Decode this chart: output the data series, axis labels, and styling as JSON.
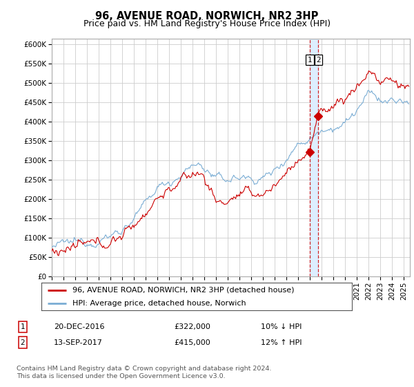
{
  "title": "96, AVENUE ROAD, NORWICH, NR2 3HP",
  "subtitle": "Price paid vs. HM Land Registry's House Price Index (HPI)",
  "ylabel_ticks": [
    0,
    50000,
    100000,
    150000,
    200000,
    250000,
    300000,
    350000,
    400000,
    450000,
    500000,
    550000,
    600000
  ],
  "ylabel_labels": [
    "£0",
    "£50K",
    "£100K",
    "£150K",
    "£200K",
    "£250K",
    "£300K",
    "£350K",
    "£400K",
    "£450K",
    "£500K",
    "£550K",
    "£600K"
  ],
  "ylim": [
    0,
    615000
  ],
  "xlim_start": 1995.0,
  "xlim_end": 2025.5,
  "sale1_date": 2016.96,
  "sale1_price": 322000,
  "sale2_date": 2017.71,
  "sale2_price": 415000,
  "red_line_color": "#cc0000",
  "blue_line_color": "#7aadd4",
  "sale_band_color": "#ddeeff",
  "grid_color": "#cccccc",
  "background_color": "#ffffff",
  "legend_line1": "96, AVENUE ROAD, NORWICH, NR2 3HP (detached house)",
  "legend_line2": "HPI: Average price, detached house, Norwich",
  "annotation1_date": "20-DEC-2016",
  "annotation1_price": "£322,000",
  "annotation1_hpi": "10% ↓ HPI",
  "annotation2_date": "13-SEP-2017",
  "annotation2_price": "£415,000",
  "annotation2_hpi": "12% ↑ HPI",
  "footer": "Contains HM Land Registry data © Crown copyright and database right 2024.\nThis data is licensed under the Open Government Licence v3.0.",
  "title_fontsize": 10.5,
  "subtitle_fontsize": 9,
  "tick_fontsize": 7.5,
  "legend_fontsize": 8
}
